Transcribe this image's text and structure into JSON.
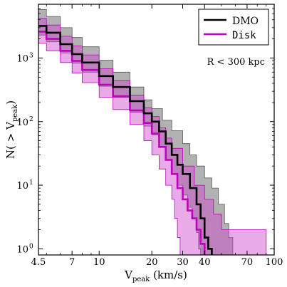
{
  "chart_data": {
    "type": "line",
    "title": "",
    "xlabel_main": "V",
    "xlabel_sub": "peak",
    "xlabel_unit": " (km/s)",
    "ylabel_pre": "N( > V",
    "ylabel_sub": "peak",
    "ylabel_post": ")",
    "x_scale": "log",
    "y_scale": "log",
    "xlim": [
      4.5,
      100
    ],
    "ylim": [
      0.8,
      7000
    ],
    "x_tick_values": [
      4.5,
      7,
      10,
      20,
      30,
      40,
      70,
      100
    ],
    "x_tick_labels": [
      "4.5",
      "7",
      "10",
      "20",
      "30",
      "40",
      "70",
      "100"
    ],
    "y_tick_values": [
      1,
      10,
      100,
      1000
    ],
    "y_tick_labels": [
      "10",
      "10",
      "10",
      "10"
    ],
    "y_tick_exponents": [
      "0",
      "1",
      "2",
      "3"
    ],
    "annotation": "R < 300 kpc",
    "legend_position": "top-right",
    "colors": {
      "DMO": "#000000",
      "DMO_band": "#7f7f7f",
      "Disk": "#bf00bf",
      "Disk_band": "#cc44cc"
    },
    "series": [
      {
        "name": "DMO",
        "median": [
          [
            4.5,
            3200
          ],
          [
            5,
            2500
          ],
          [
            6,
            1650
          ],
          [
            7,
            1150
          ],
          [
            8,
            850
          ],
          [
            10,
            520
          ],
          [
            12,
            350
          ],
          [
            15,
            210
          ],
          [
            18,
            135
          ],
          [
            20,
            100
          ],
          [
            22,
            70
          ],
          [
            24,
            45
          ],
          [
            26,
            30
          ],
          [
            28,
            21
          ],
          [
            30,
            15
          ],
          [
            33,
            9
          ],
          [
            36,
            5
          ],
          [
            38,
            3
          ],
          [
            40,
            1.5
          ],
          [
            42,
            1
          ],
          [
            44,
            0.5
          ]
        ],
        "upper": [
          [
            4.5,
            5800
          ],
          [
            5,
            4500
          ],
          [
            6,
            3000
          ],
          [
            7,
            2100
          ],
          [
            8,
            1500
          ],
          [
            10,
            920
          ],
          [
            12,
            600
          ],
          [
            15,
            350
          ],
          [
            18,
            220
          ],
          [
            20,
            160
          ],
          [
            23,
            105
          ],
          [
            26,
            72
          ],
          [
            30,
            45
          ],
          [
            33,
            30
          ],
          [
            36,
            20
          ],
          [
            40,
            13
          ],
          [
            44,
            9
          ],
          [
            48,
            5
          ],
          [
            52,
            2.5
          ],
          [
            55,
            1.5
          ],
          [
            58,
            0.5
          ]
        ],
        "lower": [
          [
            4.5,
            2300
          ],
          [
            5,
            1800
          ],
          [
            6,
            1200
          ],
          [
            7,
            830
          ],
          [
            8,
            600
          ],
          [
            10,
            360
          ],
          [
            12,
            240
          ],
          [
            15,
            140
          ],
          [
            18,
            85
          ],
          [
            20,
            62
          ],
          [
            22,
            40
          ],
          [
            24,
            25
          ],
          [
            26,
            15
          ],
          [
            28,
            10
          ],
          [
            30,
            7
          ],
          [
            32,
            4.5
          ],
          [
            34,
            3
          ],
          [
            36,
            1.8
          ],
          [
            37,
            1
          ],
          [
            38,
            0.5
          ]
        ]
      },
      {
        "name": "Disk",
        "median": [
          [
            4.5,
            2600
          ],
          [
            5,
            2000
          ],
          [
            6,
            1300
          ],
          [
            7,
            900
          ],
          [
            8,
            650
          ],
          [
            10,
            380
          ],
          [
            12,
            250
          ],
          [
            15,
            150
          ],
          [
            18,
            95
          ],
          [
            20,
            65
          ],
          [
            22,
            40
          ],
          [
            24,
            25
          ],
          [
            26,
            15
          ],
          [
            28,
            9
          ],
          [
            30,
            6
          ],
          [
            32,
            4
          ],
          [
            34,
            3
          ],
          [
            36,
            2
          ],
          [
            38,
            1.2
          ],
          [
            40,
            0.5
          ]
        ],
        "upper": [
          [
            4.5,
            4200
          ],
          [
            5,
            3300
          ],
          [
            6,
            2200
          ],
          [
            7,
            1550
          ],
          [
            8,
            1120
          ],
          [
            10,
            680
          ],
          [
            12,
            440
          ],
          [
            15,
            260
          ],
          [
            18,
            165
          ],
          [
            20,
            120
          ],
          [
            22,
            80
          ],
          [
            24,
            55
          ],
          [
            26,
            38
          ],
          [
            30,
            20
          ],
          [
            35,
            10
          ],
          [
            40,
            6
          ],
          [
            45,
            3.5
          ],
          [
            50,
            2
          ],
          [
            60,
            2
          ],
          [
            70,
            2
          ],
          [
            90,
            2
          ],
          [
            90,
            0.5
          ]
        ],
        "lower": [
          [
            4.5,
            1700
          ],
          [
            5,
            1300
          ],
          [
            6,
            850
          ],
          [
            7,
            580
          ],
          [
            8,
            410
          ],
          [
            10,
            240
          ],
          [
            12,
            155
          ],
          [
            15,
            90
          ],
          [
            18,
            50
          ],
          [
            20,
            30
          ],
          [
            22,
            18
          ],
          [
            24,
            10
          ],
          [
            26,
            6
          ],
          [
            27,
            3
          ],
          [
            28,
            1.5
          ],
          [
            29,
            0.5
          ]
        ]
      }
    ]
  }
}
